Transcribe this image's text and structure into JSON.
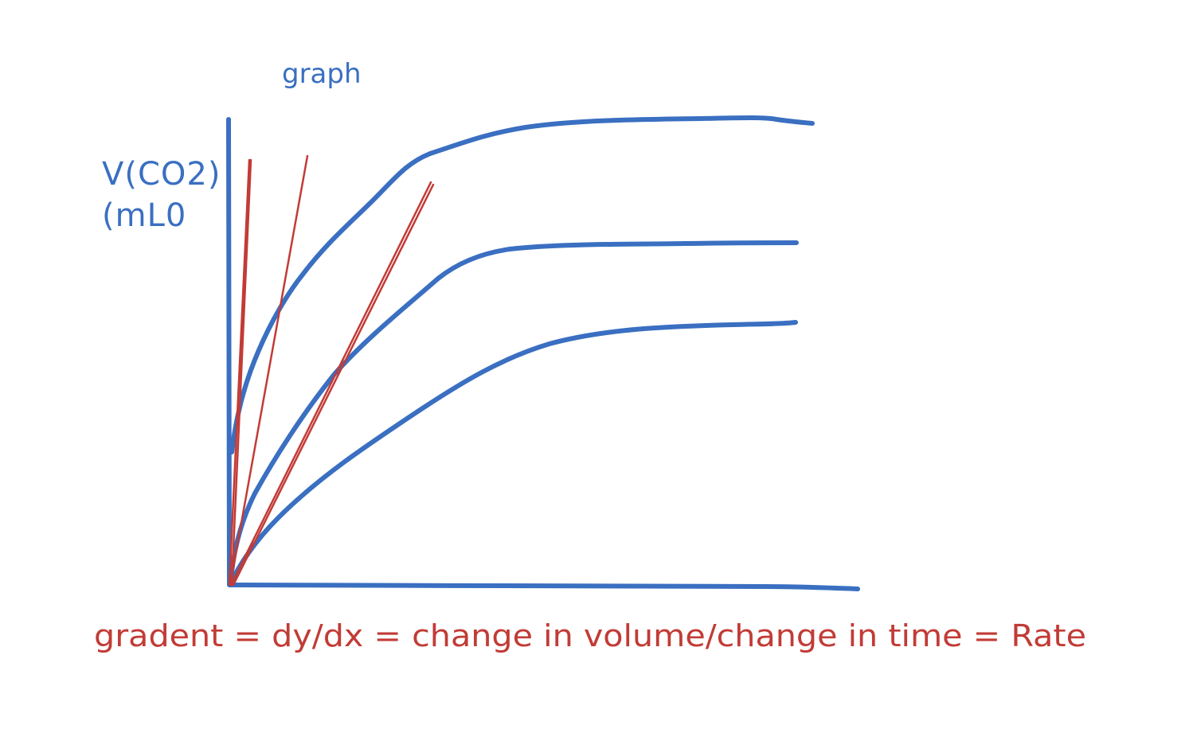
{
  "title": "graph",
  "y_axis_label_line1": "V(CO2)",
  "y_axis_label_line2": "(mL0",
  "caption": "gradent = dy/dx = change in volume/change in time = Rate",
  "colors": {
    "ink_blue": "#3a6fc1",
    "ink_red": "#c23b36",
    "background": "#ffffff"
  },
  "diagram": {
    "curves": [
      {
        "id": "fast-curve"
      },
      {
        "id": "medium-curve"
      },
      {
        "id": "slow-curve"
      }
    ],
    "tangents": [
      {
        "id": "tangent-fast"
      },
      {
        "id": "tangent-medium"
      },
      {
        "id": "tangent-slow"
      }
    ]
  }
}
